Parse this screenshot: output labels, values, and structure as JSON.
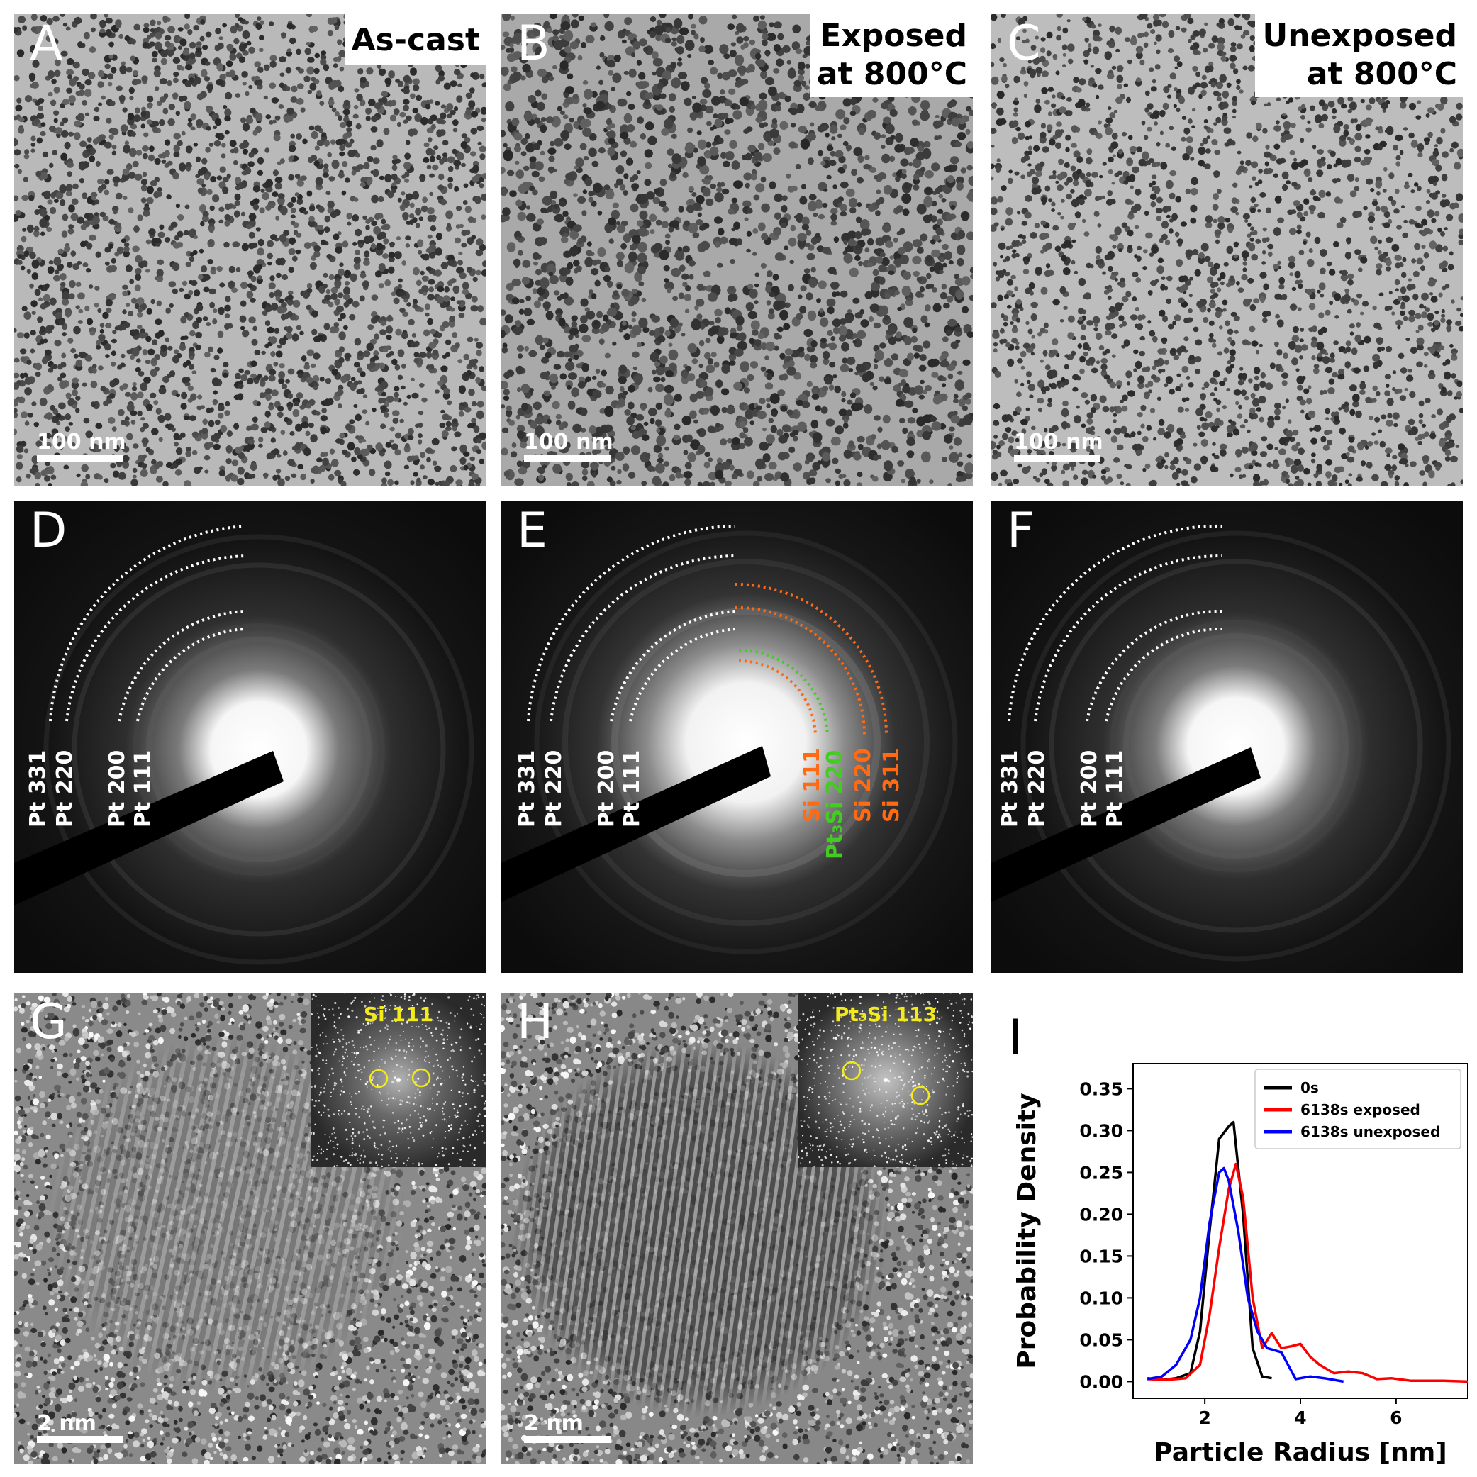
{
  "panels": {
    "A": {
      "letter": "A",
      "condition_line1": "As-cast",
      "condition_line2": "",
      "scale": "100 nm"
    },
    "B": {
      "letter": "B",
      "condition_line1": "Exposed",
      "condition_line2": "at 800°C",
      "scale": "100 nm"
    },
    "C": {
      "letter": "C",
      "condition_line1": "Unexposed",
      "condition_line2": "at 800°C",
      "scale": "100 nm"
    },
    "D": {
      "letter": "D",
      "rings": [
        "Pt 331",
        "Pt 220",
        "Pt 200",
        "Pt 111"
      ]
    },
    "E": {
      "letter": "E",
      "rings": [
        "Pt 331",
        "Pt 220",
        "Pt 200",
        "Pt 111"
      ],
      "extra_rings": [
        "Si 111",
        "Pt₃Si 220",
        "Si 220",
        "Si 311"
      ]
    },
    "F": {
      "letter": "F",
      "rings": [
        "Pt 331",
        "Pt 220",
        "Pt 200",
        "Pt 111"
      ]
    },
    "G": {
      "letter": "G",
      "inset": "Si 111",
      "scale": "2 nm"
    },
    "H": {
      "letter": "H",
      "inset": "Pt₃Si 113",
      "scale": "2 nm"
    },
    "I": {
      "letter": "I"
    }
  },
  "colors": {
    "pt_ring": "#ffffff",
    "si_ring": "#ff6a13",
    "pt3si_ring": "#44cc22",
    "inset_label": "#f2ea1a"
  },
  "chart_data": {
    "type": "line",
    "title": "",
    "xlabel": "Particle Radius [nm]",
    "ylabel": "Probability Density",
    "xlim": [
      0.5,
      7.5
    ],
    "ylim": [
      -0.02,
      0.38
    ],
    "xticks": [
      2,
      4,
      6
    ],
    "yticks": [
      0.0,
      0.05,
      0.1,
      0.15,
      0.2,
      0.25,
      0.3,
      0.35
    ],
    "ytick_labels": [
      "0.00",
      "0.05",
      "0.10",
      "0.15",
      "0.20",
      "0.25",
      "0.30",
      "0.35"
    ],
    "legend_position": "top-right",
    "series": [
      {
        "name": "0s",
        "color": "#000000",
        "x": [
          0.8,
          1.1,
          1.4,
          1.7,
          1.9,
          2.1,
          2.3,
          2.5,
          2.6,
          2.8,
          3.0,
          3.2,
          3.4
        ],
        "y": [
          0.004,
          0.002,
          0.004,
          0.01,
          0.06,
          0.18,
          0.29,
          0.305,
          0.31,
          0.2,
          0.04,
          0.006,
          0.004
        ]
      },
      {
        "name": "6138s exposed",
        "color": "#ff0000",
        "x": [
          0.8,
          1.2,
          1.6,
          1.9,
          2.1,
          2.3,
          2.5,
          2.65,
          2.8,
          3.0,
          3.2,
          3.4,
          3.6,
          3.8,
          4.0,
          4.2,
          4.4,
          4.7,
          5.0,
          5.3,
          5.6,
          5.9,
          6.3,
          6.6,
          7.0,
          7.5
        ],
        "y": [
          0.003,
          0.002,
          0.004,
          0.02,
          0.08,
          0.16,
          0.23,
          0.26,
          0.22,
          0.1,
          0.04,
          0.058,
          0.04,
          0.042,
          0.045,
          0.03,
          0.02,
          0.01,
          0.012,
          0.01,
          0.003,
          0.004,
          0.001,
          0.001,
          0.001,
          0.0
        ]
      },
      {
        "name": "6138s unexposed",
        "color": "#0000ff",
        "x": [
          0.8,
          1.1,
          1.4,
          1.7,
          1.9,
          2.1,
          2.3,
          2.4,
          2.5,
          2.7,
          2.9,
          3.1,
          3.3,
          3.6,
          3.9,
          4.2,
          4.5,
          4.9
        ],
        "y": [
          0.003,
          0.006,
          0.02,
          0.05,
          0.1,
          0.19,
          0.25,
          0.255,
          0.24,
          0.18,
          0.1,
          0.06,
          0.04,
          0.035,
          0.003,
          0.006,
          0.004,
          0.0
        ]
      }
    ]
  }
}
